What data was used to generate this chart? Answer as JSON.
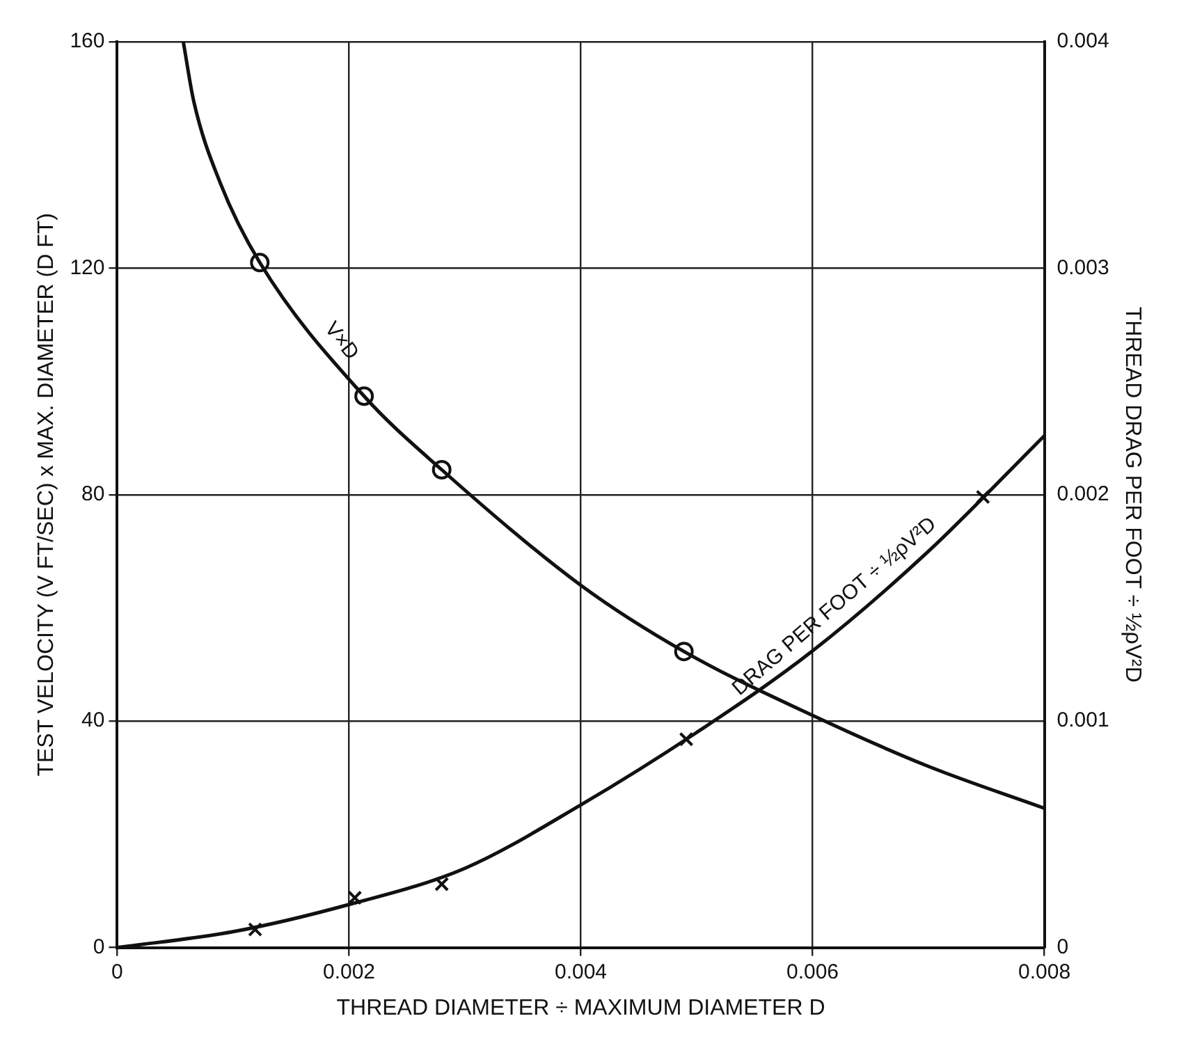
{
  "chart_data": {
    "type": "line",
    "xlabel": "THREAD DIAMETER ÷ MAXIMUM DIAMETER D",
    "ylabel": "TEST VELOCITY (V FT/SEC) x MAX. DIAMETER (D FT)",
    "y2label": "THREAD DRAG PER FOOT ÷ ½ρV²D",
    "xlim": [
      0,
      0.008
    ],
    "xticks": [
      0,
      0.002,
      0.004,
      0.006,
      0.008
    ],
    "ylim": [
      0,
      160
    ],
    "yticks": [
      0,
      40,
      80,
      120,
      160
    ],
    "y2lim": [
      0,
      0.004
    ],
    "y2ticks": [
      0,
      0.001,
      0.002,
      0.003,
      0.004
    ],
    "grid": true,
    "legend": false,
    "line_style": "solid",
    "series": [
      {
        "marker": "none",
        "color": "#111111",
        "x": [
          0.00057,
          0.00066,
          0.00089,
          0.00123,
          0.00213,
          0.0028,
          0.004,
          0.00489,
          0.006,
          0.007,
          0.008
        ],
        "values": [
          160,
          149.5,
          135,
          121,
          97.4,
          84.4,
          64,
          52.3,
          41,
          32,
          24.6
        ]
      },
      {
        "type": "scatter",
        "marker": "circle",
        "color": "#111111",
        "x": [
          0.00123,
          0.00213,
          0.0028,
          0.00489
        ],
        "values": [
          121,
          97.4,
          84.4,
          52.3
        ]
      },
      {
        "marker": "none",
        "color": "#111111",
        "axis": "y2",
        "x": [
          0,
          0.001,
          0.002,
          0.003,
          0.004,
          0.005,
          0.006,
          0.007,
          0.008
        ],
        "values": [
          0,
          7e-05,
          0.00019,
          0.00035,
          0.00063,
          0.00095,
          0.00131,
          0.00175,
          0.00226
        ]
      },
      {
        "type": "scatter",
        "marker": "cross",
        "color": "#111111",
        "axis": "y2",
        "x": [
          0.00119,
          0.00205,
          0.0028,
          0.00491,
          0.00747
        ],
        "values": [
          8e-05,
          0.00022,
          0.00028,
          0.00092,
          0.00199
        ]
      }
    ],
    "annotations": [
      {
        "text": "V×D",
        "x": 0.0018,
        "y": 105
      },
      {
        "text": "DRAG PER FOOT ÷ ½ρV²D",
        "x": 0.0063,
        "y": 57.6
      }
    ]
  }
}
